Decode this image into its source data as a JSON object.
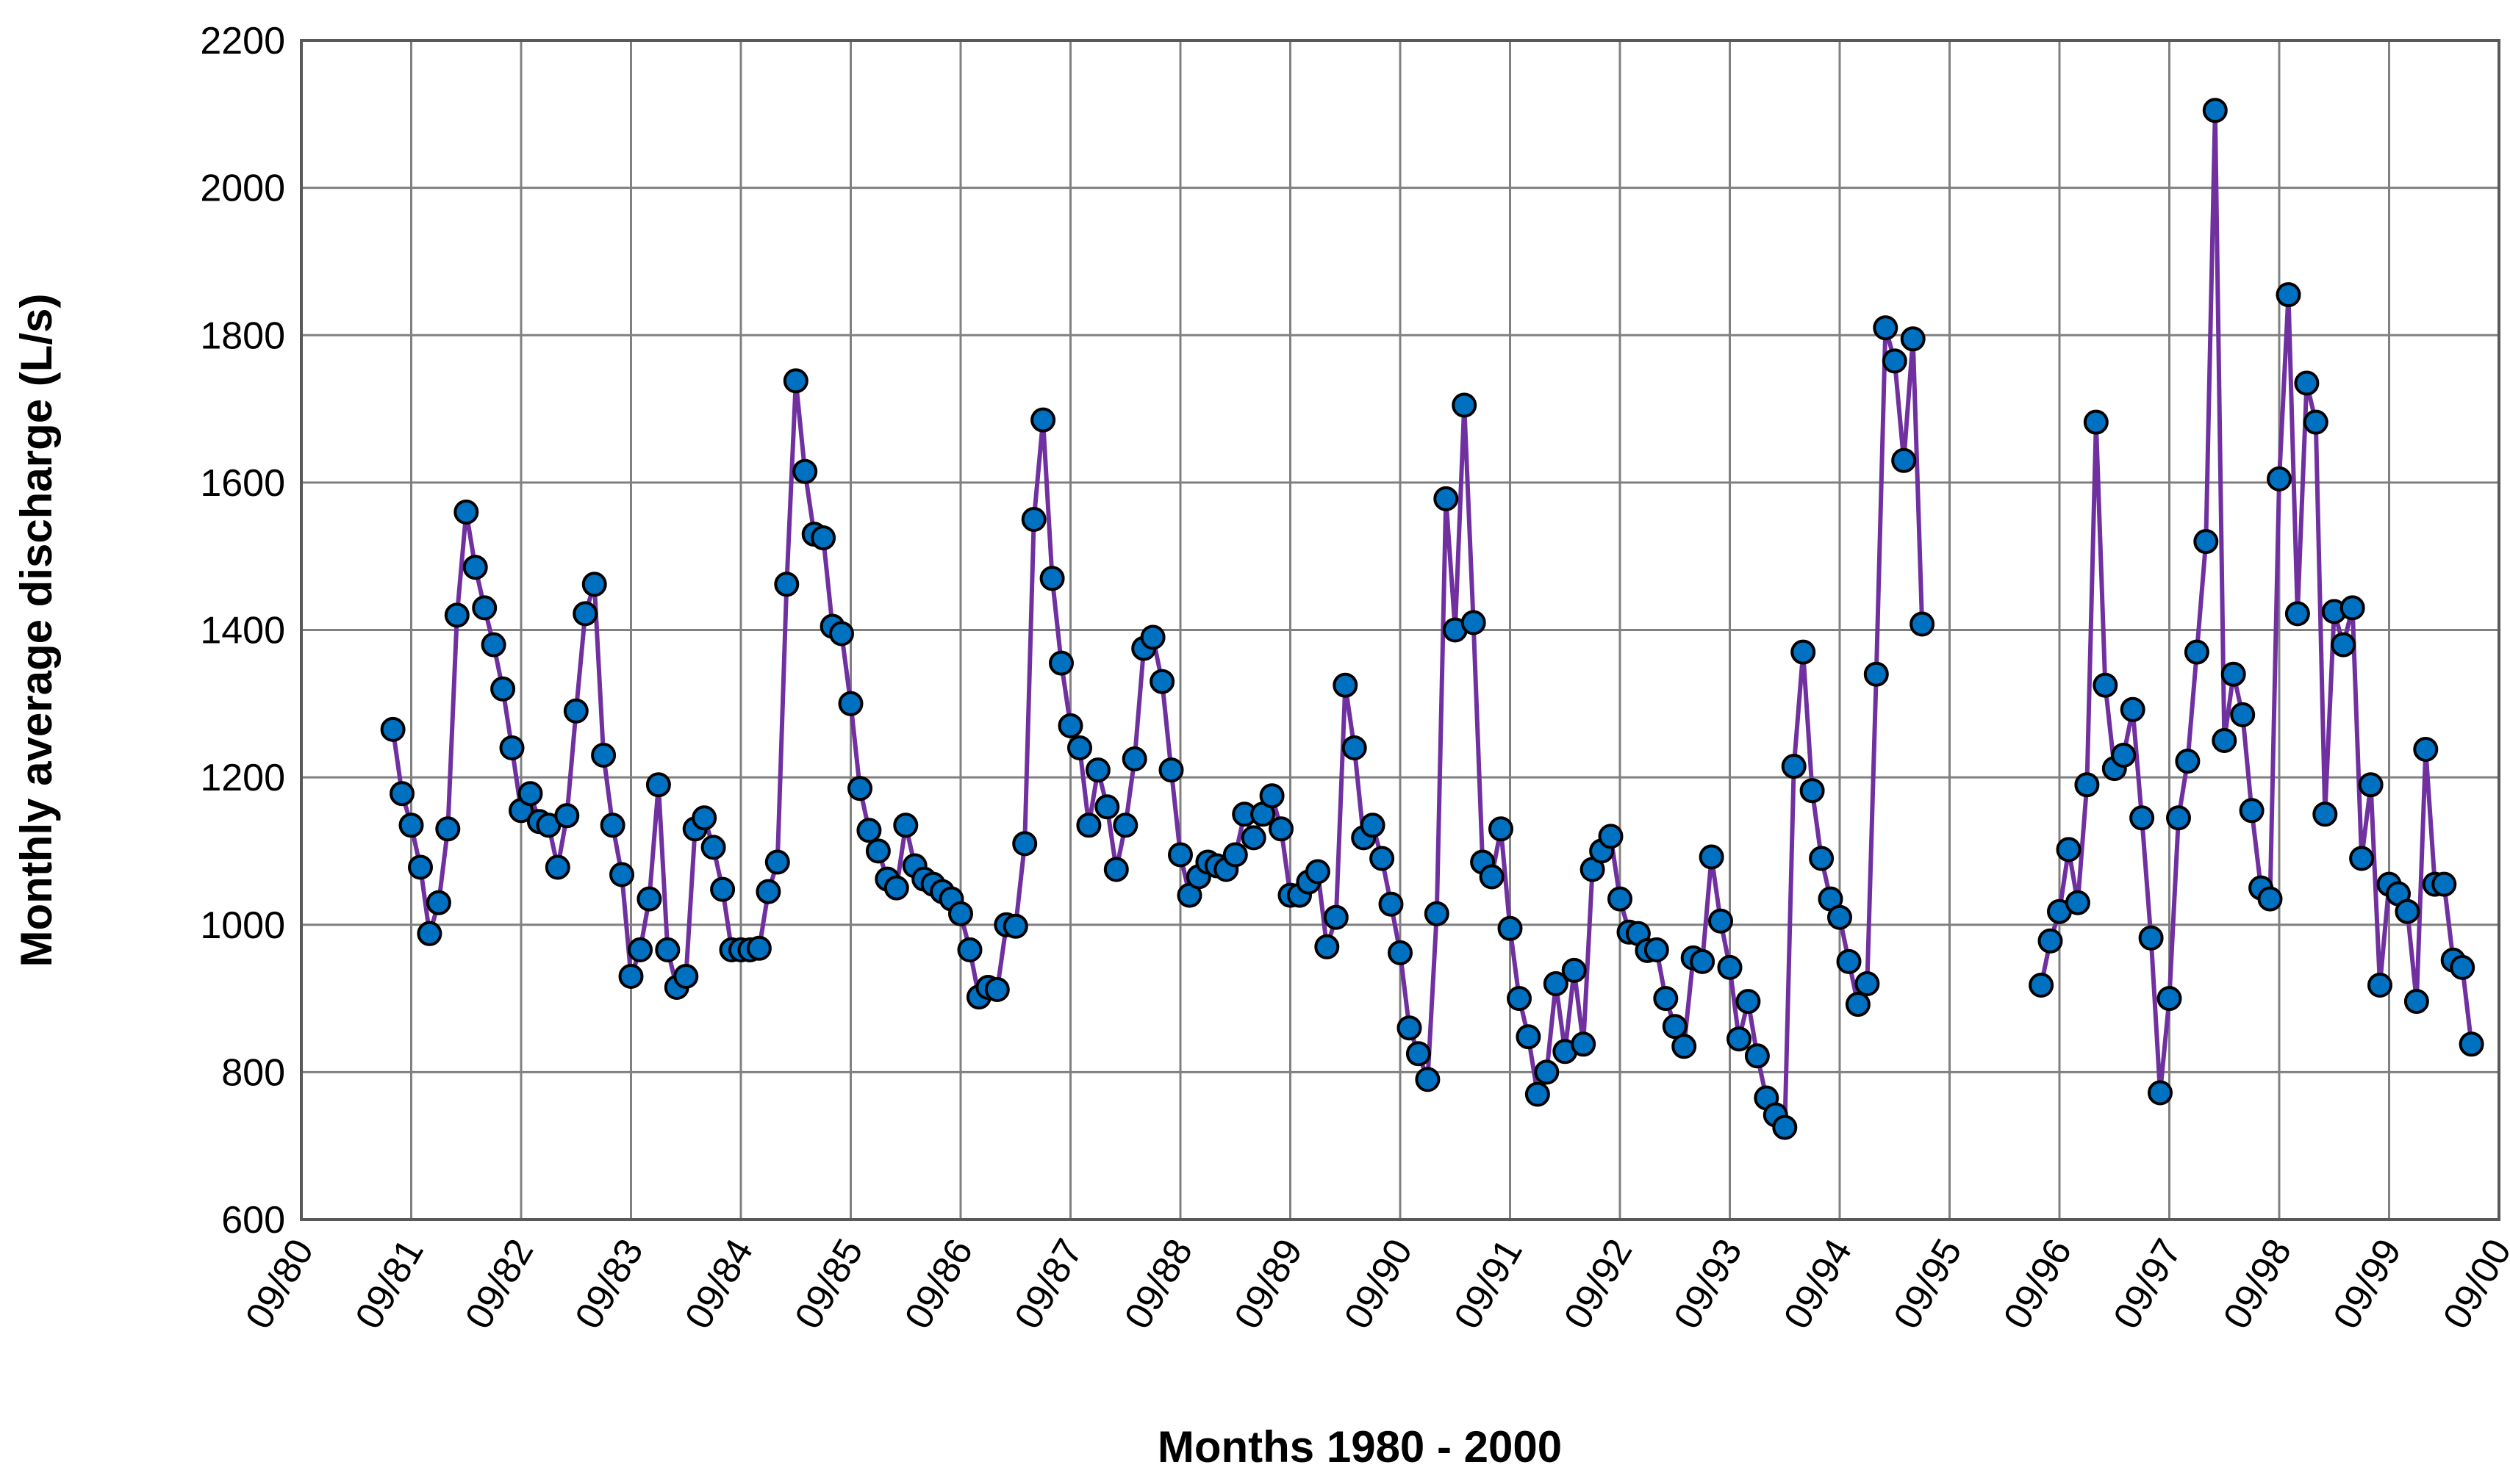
{
  "chart_data": {
    "type": "line",
    "title": "",
    "xlabel": "Months 1980 - 2000",
    "ylabel": "Monthly average discharge (L/s)",
    "ylim": [
      600,
      2200
    ],
    "y_ticks": [
      600,
      800,
      1000,
      1200,
      1400,
      1600,
      1800,
      2000,
      2200
    ],
    "x_ticks": [
      "09/80",
      "09/81",
      "09/82",
      "09/83",
      "09/84",
      "09/85",
      "09/86",
      "09/87",
      "09/88",
      "09/89",
      "09/90",
      "09/91",
      "09/92",
      "09/93",
      "09/94",
      "09/95",
      "09/96",
      "09/97",
      "09/98",
      "09/99",
      "09/00"
    ],
    "x_unit": "months since 09/80",
    "xlim": [
      0,
      240
    ],
    "grid": true,
    "colors": {
      "line": "#7030A0",
      "marker_fill": "#0070C0",
      "marker_edge": "#000000",
      "grid": "#808080"
    },
    "series": [
      {
        "name": "Monthly average discharge",
        "segments": [
          {
            "x_start": 10,
            "values": [
              1265,
              1178,
              1135,
              1078,
              988,
              1030,
              1130,
              1420,
              1560,
              1485,
              1430,
              1380,
              1320,
              1240,
              1155,
              1178,
              1140,
              1135,
              1078,
              1148,
              1290,
              1422,
              1462,
              1230,
              1135,
              1068,
              930,
              966,
              1035,
              1190,
              966,
              915,
              930,
              1130,
              1145,
              1105,
              1048,
              966,
              966,
              966,
              968,
              1045,
              1085,
              1462,
              1738,
              1615,
              1530,
              1525,
              1405,
              1395,
              1300,
              1185,
              1128,
              1100,
              1062,
              1050,
              1135,
              1080,
              1062,
              1055,
              1045,
              1035,
              1015,
              966,
              902,
              915,
              912,
              1000,
              998,
              1110,
              1550,
              1685,
              1470,
              1355,
              1270,
              1240,
              1135,
              1210,
              1160,
              1075,
              1135,
              1225,
              1375,
              1390,
              1330,
              1210,
              1095,
              1040,
              1065,
              1085,
              1080,
              1075,
              1095,
              1150,
              1118,
              1150,
              1175,
              1130,
              1040,
              1040,
              1058,
              1072,
              970,
              1010,
              1325,
              1240,
              1118,
              1135,
              1090,
              1028,
              962,
              860,
              825,
              790,
              1015,
              1578,
              1400,
              1705,
              1410,
              1085,
              1065,
              1130,
              995,
              900,
              848,
              770,
              800,
              920,
              828,
              938,
              838,
              1075,
              1100,
              1120,
              1035,
              990,
              988,
              965,
              966,
              900,
              862,
              835,
              955,
              950,
              1092,
              1005,
              942,
              845,
              896,
              822,
              765,
              742,
              725,
              1215,
              1370,
              1182,
              1090,
              1035,
              1010,
              950,
              892,
              920,
              1340,
              1810,
              1765,
              1630,
              1795,
              1408
            ]
          },
          {
            "x_start": 190,
            "values": [
              918,
              978,
              1018,
              1102,
              1030,
              1190,
              1682,
              1325,
              1212,
              1230,
              1292,
              1145,
              982,
              772,
              900,
              1145,
              1222,
              1370,
              1520,
              2105,
              1250,
              1340,
              1285,
              1155,
              1050,
              1035,
              1605,
              1855,
              1422,
              1735,
              1682,
              1150,
              1425,
              1380,
              1430,
              1090,
              1190,
              918,
              1055,
              1042,
              1018,
              896,
              1238,
              1055,
              1055,
              952,
              942,
              838
            ]
          }
        ]
      }
    ]
  }
}
